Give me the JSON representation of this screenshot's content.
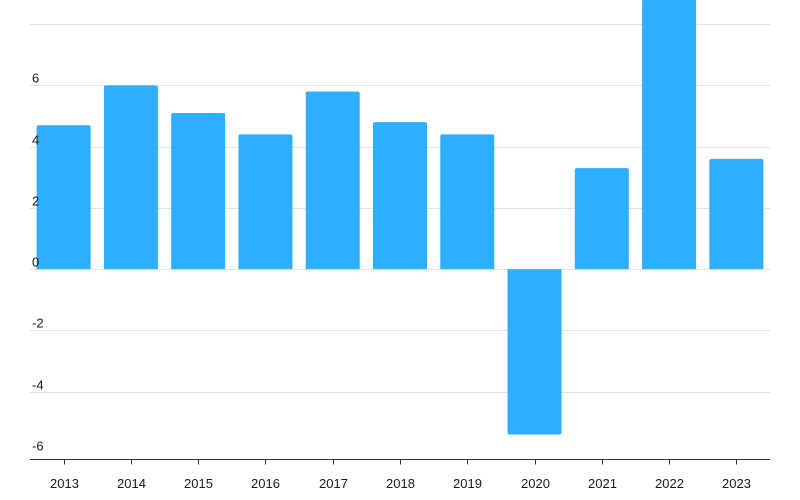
{
  "chart_data": {
    "type": "bar",
    "title": "",
    "xlabel": "",
    "ylabel": "",
    "categories": [
      "2013",
      "2014",
      "2015",
      "2016",
      "2017",
      "2018",
      "2019",
      "2020",
      "2021",
      "2022",
      "2023"
    ],
    "values": [
      4.7,
      6.0,
      5.1,
      4.4,
      5.8,
      4.8,
      4.4,
      -5.4,
      3.3,
      8.8,
      3.6
    ],
    "ylim": [
      -6.2,
      8.2
    ],
    "yticks": [
      -6,
      -4,
      -2,
      0,
      2,
      4,
      6,
      8
    ],
    "ytick_labels": [
      "-6",
      "-4",
      "-2",
      "0",
      "2",
      "4",
      "6",
      ""
    ],
    "grid": true,
    "legend": "none",
    "colors": {
      "bar": "#2daeff",
      "grid": "#e3e3e3",
      "axis": "#333333",
      "text": "#1a1a1a"
    }
  }
}
